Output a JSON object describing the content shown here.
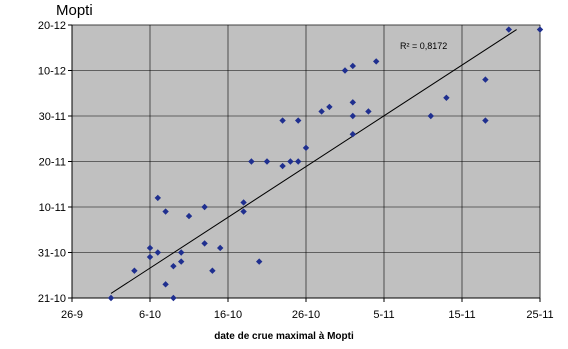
{
  "chart_data": {
    "type": "scatter",
    "title": "Mopti",
    "xlabel": "date de crue maximal à Mopti",
    "ylabel": "",
    "x_ticks": [
      "26-9",
      "6-10",
      "16-10",
      "26-10",
      "5-11",
      "15-11",
      "25-11"
    ],
    "y_ticks": [
      "21-10",
      "31-10",
      "10-11",
      "20-11",
      "30-11",
      "10-12",
      "20-12"
    ],
    "xlim": [
      "26-9",
      "25-11"
    ],
    "ylim": [
      "21-10",
      "20-12"
    ],
    "grid": true,
    "plot_background": "#c0c0c0",
    "marker_color": "#1f2f8f",
    "annotation": "R² = 0,8172",
    "trendline": {
      "x": [
        "1-10",
        "22-11"
      ],
      "y": [
        "22-10",
        "19-12"
      ]
    },
    "points": [
      {
        "x": "1-10",
        "y": "21-10"
      },
      {
        "x": "4-10",
        "y": "27-10"
      },
      {
        "x": "6-10",
        "y": "30-10"
      },
      {
        "x": "6-10",
        "y": "1-11"
      },
      {
        "x": "7-10",
        "y": "12-11"
      },
      {
        "x": "7-10",
        "y": "31-10"
      },
      {
        "x": "8-10",
        "y": "24-10"
      },
      {
        "x": "8-10",
        "y": "9-11"
      },
      {
        "x": "9-10",
        "y": "21-10"
      },
      {
        "x": "9-10",
        "y": "28-10"
      },
      {
        "x": "10-10",
        "y": "29-10"
      },
      {
        "x": "10-10",
        "y": "31-10"
      },
      {
        "x": "11-10",
        "y": "8-11"
      },
      {
        "x": "13-10",
        "y": "2-11"
      },
      {
        "x": "13-10",
        "y": "10-11"
      },
      {
        "x": "14-10",
        "y": "27-10"
      },
      {
        "x": "15-10",
        "y": "1-11"
      },
      {
        "x": "18-10",
        "y": "9-11"
      },
      {
        "x": "18-10",
        "y": "11-11"
      },
      {
        "x": "19-10",
        "y": "20-11"
      },
      {
        "x": "20-10",
        "y": "29-10"
      },
      {
        "x": "21-10",
        "y": "20-11"
      },
      {
        "x": "23-10",
        "y": "19-11"
      },
      {
        "x": "23-10",
        "y": "29-11"
      },
      {
        "x": "24-10",
        "y": "20-11"
      },
      {
        "x": "25-10",
        "y": "20-11"
      },
      {
        "x": "25-10",
        "y": "29-11"
      },
      {
        "x": "26-10",
        "y": "23-11"
      },
      {
        "x": "28-10",
        "y": "1-12"
      },
      {
        "x": "29-10",
        "y": "2-12"
      },
      {
        "x": "31-10",
        "y": "10-12"
      },
      {
        "x": "1-11",
        "y": "11-12"
      },
      {
        "x": "1-11",
        "y": "3-12"
      },
      {
        "x": "1-11",
        "y": "30-11"
      },
      {
        "x": "1-11",
        "y": "26-11"
      },
      {
        "x": "3-11",
        "y": "1-12"
      },
      {
        "x": "4-11",
        "y": "12-12"
      },
      {
        "x": "11-11",
        "y": "30-11"
      },
      {
        "x": "13-11",
        "y": "4-12"
      },
      {
        "x": "18-11",
        "y": "8-12"
      },
      {
        "x": "18-11",
        "y": "29-11"
      },
      {
        "x": "21-11",
        "y": "19-12"
      },
      {
        "x": "25-11",
        "y": "19-12"
      }
    ]
  }
}
